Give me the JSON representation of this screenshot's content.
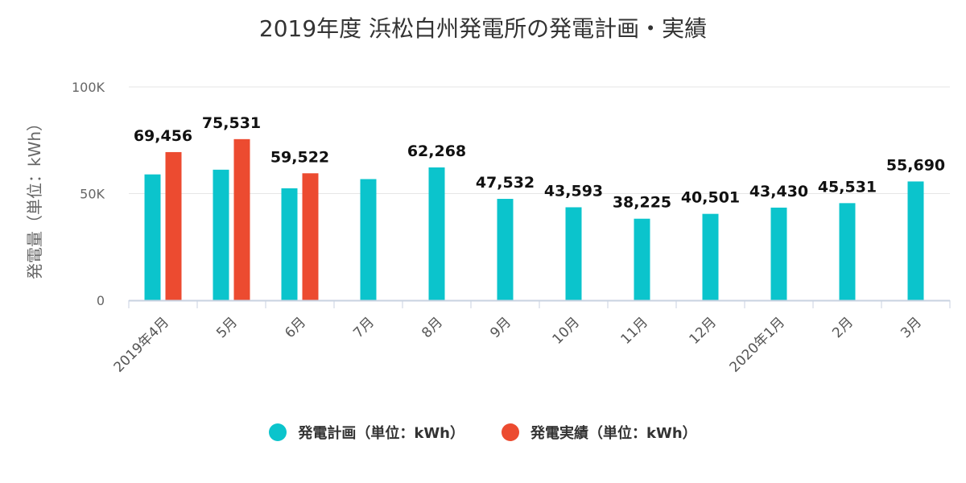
{
  "chart_data": {
    "type": "bar",
    "title": "2019年度 浜松白州発電所の発電計画・実績",
    "ylabel": "発電量（単位：kWh）",
    "xlabel": "",
    "ylim": [
      0,
      100000
    ],
    "yticks": [
      0,
      50000,
      100000
    ],
    "ytick_labels": [
      "0",
      "50K",
      "100K"
    ],
    "grid": true,
    "legend_position": "bottom",
    "categories": [
      "2019年4月",
      "5月",
      "6月",
      "7月",
      "8月",
      "9月",
      "10月",
      "11月",
      "12月",
      "2020年1月",
      "2月",
      "3月"
    ],
    "series": [
      {
        "name": "発電計画（単位：kWh）",
        "color": "#0bc4cc",
        "values": [
          59000,
          61200,
          52500,
          56800,
          62268,
          47532,
          43593,
          38225,
          40501,
          43430,
          45531,
          55690
        ]
      },
      {
        "name": "発電実績（単位：kWh）",
        "color": "#ec4b30",
        "values": [
          69456,
          75531,
          59522,
          null,
          null,
          null,
          null,
          null,
          null,
          null,
          null,
          null
        ]
      }
    ],
    "data_labels": [
      "69,456",
      "75,531",
      "59,522",
      "",
      "62,268",
      "47,532",
      "43,593",
      "38,225",
      "40,501",
      "43,430",
      "45,531",
      "55,690"
    ]
  }
}
